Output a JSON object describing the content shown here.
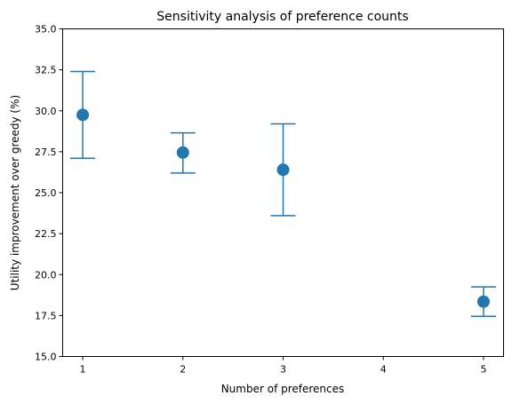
{
  "chart_data": {
    "type": "scatter",
    "title": "Sensitivity analysis of preference counts",
    "xlabel": "Number of preferences",
    "ylabel": "Utility improvement over greedy (%)",
    "xlim": [
      0.8,
      5.2
    ],
    "ylim": [
      15.0,
      35.0
    ],
    "xticks": [
      1,
      2,
      3,
      4,
      5
    ],
    "xtick_labels": [
      "1",
      "2",
      "3",
      "4",
      "5"
    ],
    "yticks": [
      15.0,
      17.5,
      20.0,
      22.5,
      25.0,
      27.5,
      30.0,
      32.5,
      35.0
    ],
    "ytick_labels": [
      "15.0",
      "17.5",
      "20.0",
      "22.5",
      "25.0",
      "27.5",
      "30.0",
      "32.5",
      "35.0"
    ],
    "grid": false,
    "color": "#1f77b4",
    "points": [
      {
        "x": 1,
        "y": 29.75,
        "ylow": 27.1,
        "yhigh": 32.4
      },
      {
        "x": 2,
        "y": 27.45,
        "ylow": 26.2,
        "yhigh": 28.65
      },
      {
        "x": 3,
        "y": 26.4,
        "ylow": 23.6,
        "yhigh": 29.2
      },
      {
        "x": 5,
        "y": 18.35,
        "ylow": 17.45,
        "yhigh": 19.25
      }
    ]
  }
}
